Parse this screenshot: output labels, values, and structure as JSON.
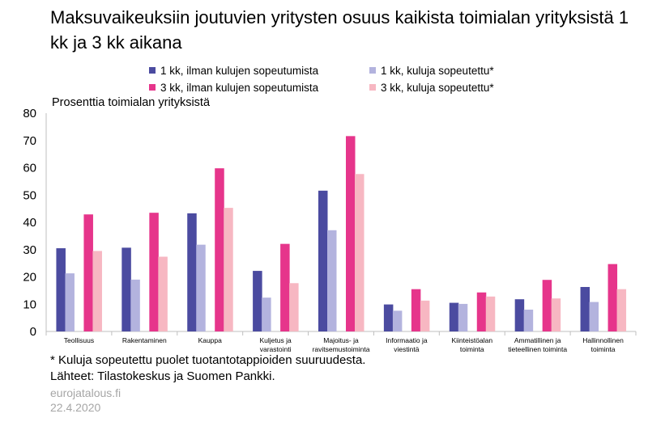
{
  "title": "Maksuvaikeuksiin joutuvien yritysten osuus kaikista toimialan yrityksistä 1 kk ja 3 kk aikana",
  "footnotes": {
    "note": "* Kuluja sopeutettu puolet tuotantotappioiden suuruudesta.",
    "source": "Lähteet: Tilastokeskus ja Suomen Pankki.",
    "site": "eurojatalous.fi",
    "date": "22.4.2020"
  },
  "chart_data": {
    "type": "bar",
    "title": "Maksuvaikeuksiin joutuvien yritysten osuus kaikista toimialan yrityksistä 1 kk ja 3 kk aikana",
    "ylabel": "Prosenttia toimialan yrityksistä",
    "xlabel": "",
    "ylim": [
      0,
      80
    ],
    "yticks": [
      0,
      10,
      20,
      30,
      40,
      50,
      60,
      70,
      80
    ],
    "grid": false,
    "legend_position": "top",
    "categories": [
      [
        "Teollisuus"
      ],
      [
        "Rakentaminen"
      ],
      [
        "Kauppa"
      ],
      [
        "Kuljetus ja",
        "varastointi"
      ],
      [
        "Majoitus- ja",
        "ravitsemustoiminta"
      ],
      [
        "Informaatio ja",
        "viestintä"
      ],
      [
        "Kiinteistöalan",
        "toiminta"
      ],
      [
        "Ammatillinen ja",
        "tieteellinen toiminta"
      ],
      [
        "Hallinnollinen",
        "toiminta"
      ]
    ],
    "series": [
      {
        "name": "1 kk, ilman kulujen sopeutumista",
        "color": "#4b4ba0",
        "values": [
          30.5,
          30.7,
          43.3,
          22.2,
          51.6,
          9.9,
          10.5,
          11.8,
          16.3
        ]
      },
      {
        "name": "1 kk, kuluja sopeutettu*",
        "color": "#b3b3de",
        "values": [
          21.3,
          19.0,
          31.8,
          12.4,
          37.1,
          7.6,
          10.1,
          8.0,
          10.8
        ]
      },
      {
        "name": "3 kk, ilman kulujen sopeutumista",
        "color": "#e6358b",
        "values": [
          42.9,
          43.5,
          59.8,
          32.1,
          71.6,
          15.5,
          14.3,
          18.9,
          24.7
        ]
      },
      {
        "name": "3 kk, kuluja sopeutettu*",
        "color": "#f7b7c2",
        "values": [
          29.5,
          27.4,
          45.3,
          17.7,
          57.7,
          11.3,
          12.8,
          12.1,
          15.5
        ]
      }
    ]
  }
}
